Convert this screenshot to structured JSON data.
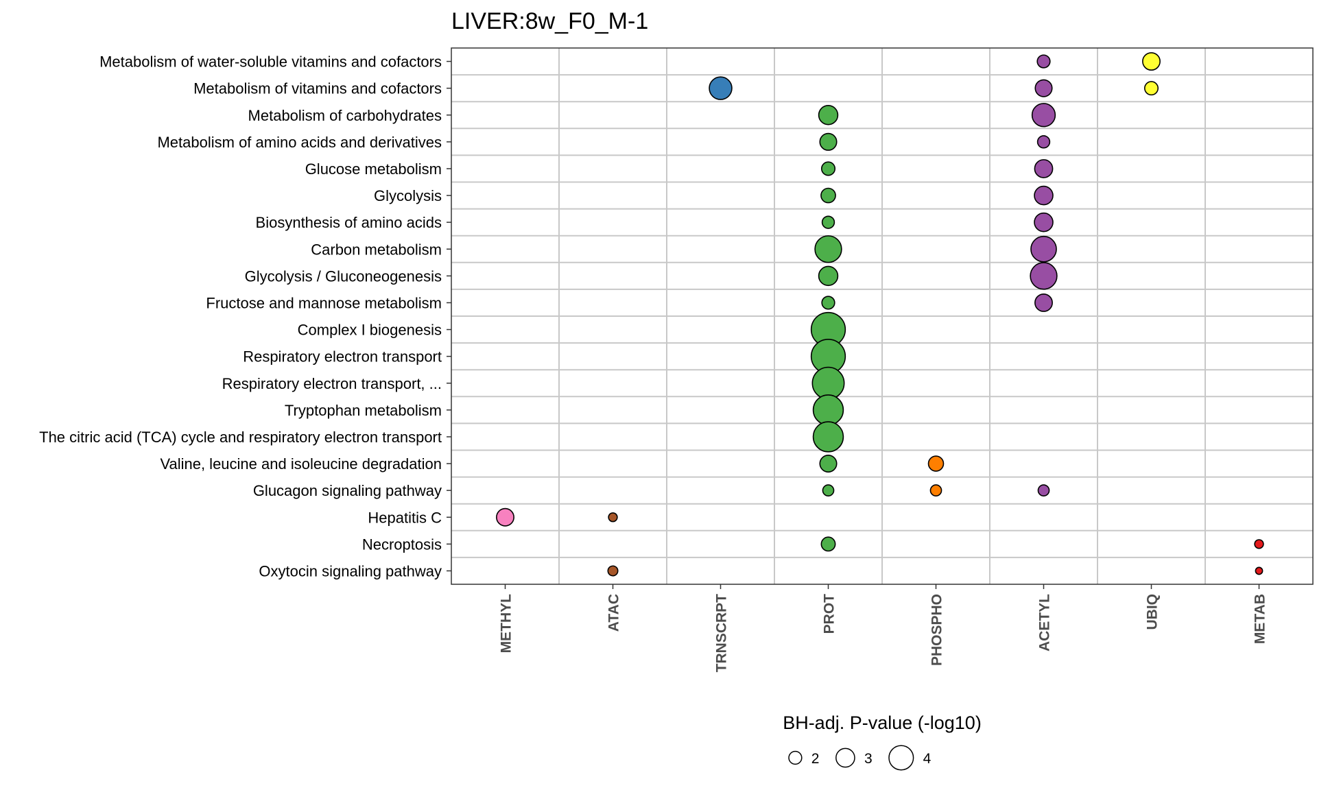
{
  "chart_data": {
    "type": "scatter",
    "title": "LIVER:8w_F0_M-1",
    "columns": [
      "METHYL",
      "ATAC",
      "TRNSCRPT",
      "PROT",
      "PHOSPHO",
      "ACETYL",
      "UBIQ",
      "METAB"
    ],
    "column_colors": {
      "METHYL": "#F781BF",
      "ATAC": "#A65628",
      "TRNSCRPT": "#377EB8",
      "PROT": "#4DAF4A",
      "PHOSPHO": "#FF7F00",
      "ACETYL": "#984EA3",
      "UBIQ": "#FFFF33",
      "METAB": "#E41A1C"
    },
    "rows": [
      "Metabolism of water-soluble vitamins and cofactors",
      "Metabolism of vitamins and cofactors",
      "Metabolism of carbohydrates",
      "Metabolism of amino acids and derivatives",
      "Glucose metabolism",
      "Glycolysis",
      "Biosynthesis of amino acids",
      "Carbon metabolism",
      "Glycolysis / Gluconeogenesis",
      "Fructose and mannose metabolism",
      "Complex I biogenesis",
      "Respiratory electron transport",
      "Respiratory electron transport, ...",
      "Tryptophan metabolism",
      "The citric acid (TCA) cycle and respiratory electron transport",
      "Valine, leucine and isoleucine degradation",
      "Glucagon signaling pathway",
      "Hepatitis C",
      "Necroptosis",
      "Oxytocin signaling pathway"
    ],
    "points": [
      {
        "row": "Metabolism of water-soluble vitamins and cofactors",
        "col": "ACETYL",
        "value": 1.5
      },
      {
        "row": "Metabolism of water-soluble vitamins and cofactors",
        "col": "UBIQ",
        "value": 2.3
      },
      {
        "row": "Metabolism of vitamins and cofactors",
        "col": "TRNSCRPT",
        "value": 3.2
      },
      {
        "row": "Metabolism of vitamins and cofactors",
        "col": "ACETYL",
        "value": 2.2
      },
      {
        "row": "Metabolism of vitamins and cofactors",
        "col": "UBIQ",
        "value": 1.6
      },
      {
        "row": "Metabolism of carbohydrates",
        "col": "PROT",
        "value": 2.6
      },
      {
        "row": "Metabolism of carbohydrates",
        "col": "ACETYL",
        "value": 3.3
      },
      {
        "row": "Metabolism of amino acids and derivatives",
        "col": "PROT",
        "value": 2.2
      },
      {
        "row": "Metabolism of amino acids and derivatives",
        "col": "ACETYL",
        "value": 1.4
      },
      {
        "row": "Glucose metabolism",
        "col": "PROT",
        "value": 1.6
      },
      {
        "row": "Glucose metabolism",
        "col": "ACETYL",
        "value": 2.4
      },
      {
        "row": "Glycolysis",
        "col": "PROT",
        "value": 1.8
      },
      {
        "row": "Glycolysis",
        "col": "ACETYL",
        "value": 2.5
      },
      {
        "row": "Biosynthesis of amino acids",
        "col": "PROT",
        "value": 1.4
      },
      {
        "row": "Biosynthesis of amino acids",
        "col": "ACETYL",
        "value": 2.5
      },
      {
        "row": "Carbon metabolism",
        "col": "PROT",
        "value": 3.9
      },
      {
        "row": "Carbon metabolism",
        "col": "ACETYL",
        "value": 3.7
      },
      {
        "row": "Glycolysis / Gluconeogenesis",
        "col": "PROT",
        "value": 2.6
      },
      {
        "row": "Glycolysis / Gluconeogenesis",
        "col": "ACETYL",
        "value": 3.9
      },
      {
        "row": "Fructose and mannose metabolism",
        "col": "PROT",
        "value": 1.5
      },
      {
        "row": "Fructose and mannose metabolism",
        "col": "ACETYL",
        "value": 2.3
      },
      {
        "row": "Complex I biogenesis",
        "col": "PROT",
        "value": 5.2
      },
      {
        "row": "Respiratory electron transport",
        "col": "PROT",
        "value": 5.2
      },
      {
        "row": "Respiratory electron transport, ...",
        "col": "PROT",
        "value": 4.8
      },
      {
        "row": "Tryptophan metabolism",
        "col": "PROT",
        "value": 4.5
      },
      {
        "row": "The citric acid (TCA) cycle and respiratory electron transport",
        "col": "PROT",
        "value": 4.5
      },
      {
        "row": "Valine, leucine and isoleucine degradation",
        "col": "PROT",
        "value": 2.2
      },
      {
        "row": "Valine, leucine and isoleucine degradation",
        "col": "PHOSPHO",
        "value": 1.9
      },
      {
        "row": "Glucagon signaling pathway",
        "col": "PROT",
        "value": 1.2
      },
      {
        "row": "Glucagon signaling pathway",
        "col": "PHOSPHO",
        "value": 1.2
      },
      {
        "row": "Glucagon signaling pathway",
        "col": "ACETYL",
        "value": 1.2
      },
      {
        "row": "Hepatitis C",
        "col": "METHYL",
        "value": 2.3
      },
      {
        "row": "Hepatitis C",
        "col": "ATAC",
        "value": 0.8
      },
      {
        "row": "Necroptosis",
        "col": "PROT",
        "value": 1.7
      },
      {
        "row": "Necroptosis",
        "col": "METAB",
        "value": 0.8
      },
      {
        "row": "Oxytocin signaling pathway",
        "col": "ATAC",
        "value": 1.0
      },
      {
        "row": "Oxytocin signaling pathway",
        "col": "METAB",
        "value": 0.5
      }
    ],
    "legend": {
      "title": "BH-adj. P-value (-log10)",
      "sizes": [
        {
          "label": "2",
          "value": 2
        },
        {
          "label": "3",
          "value": 3
        },
        {
          "label": "4",
          "value": 4
        }
      ],
      "placement": "bottom"
    },
    "grid": true
  }
}
